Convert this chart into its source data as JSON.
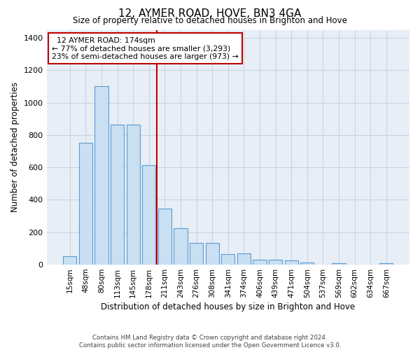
{
  "title": "12, AYMER ROAD, HOVE, BN3 4GA",
  "subtitle": "Size of property relative to detached houses in Brighton and Hove",
  "xlabel": "Distribution of detached houses by size in Brighton and Hove",
  "ylabel": "Number of detached properties",
  "footer1": "Contains HM Land Registry data © Crown copyright and database right 2024.",
  "footer2": "Contains public sector information licensed under the Open Government Licence v3.0.",
  "categories": [
    "15sqm",
    "48sqm",
    "80sqm",
    "113sqm",
    "145sqm",
    "178sqm",
    "211sqm",
    "243sqm",
    "276sqm",
    "308sqm",
    "341sqm",
    "374sqm",
    "406sqm",
    "439sqm",
    "471sqm",
    "504sqm",
    "537sqm",
    "569sqm",
    "602sqm",
    "634sqm",
    "667sqm"
  ],
  "values": [
    50,
    750,
    1100,
    865,
    865,
    615,
    345,
    225,
    135,
    135,
    65,
    70,
    30,
    30,
    25,
    15,
    0,
    10,
    0,
    0,
    10
  ],
  "bar_color": "#c9dff2",
  "bar_edge_color": "#5b9bd5",
  "property_label": "12 AYMER ROAD: 174sqm",
  "pct_smaller": 77,
  "n_smaller": 3293,
  "pct_larger_semi": 23,
  "n_larger_semi": 973,
  "vline_color": "#c00000",
  "vline_position": 5.5,
  "annotation_box_color": "#c00000",
  "grid_color": "#c8d4e3",
  "bg_color": "#e8eef5",
  "ylim": [
    0,
    1450
  ],
  "yticks": [
    0,
    200,
    400,
    600,
    800,
    1000,
    1200,
    1400
  ]
}
